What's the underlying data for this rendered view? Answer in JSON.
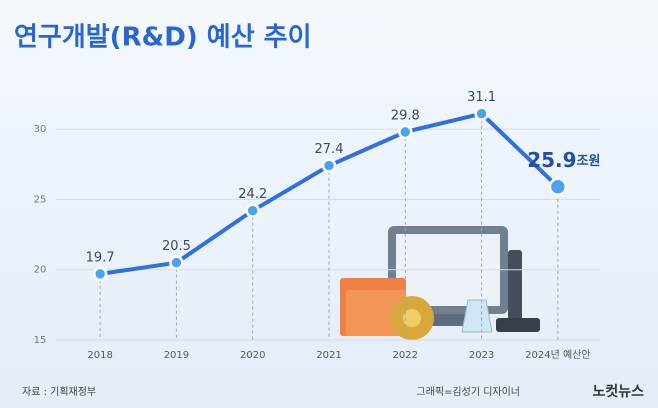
{
  "chart_data": {
    "type": "line",
    "title": "연구개발(R&D) 예산 추이",
    "categories": [
      "2018",
      "2019",
      "2020",
      "2021",
      "2022",
      "2023",
      "2024년 예산안"
    ],
    "values": [
      19.7,
      20.5,
      24.2,
      27.4,
      29.8,
      31.1,
      25.9
    ],
    "unit": "조원",
    "color": "#2f6fe0",
    "marker_color": "#4aa3ee",
    "ylim": [
      15,
      32
    ],
    "yticks": [
      15,
      20,
      25,
      30
    ],
    "grid": true,
    "source": "자료 : 기획재정부",
    "credit": "그래픽=김성기 디자이너",
    "logo": "노컷뉴스"
  }
}
